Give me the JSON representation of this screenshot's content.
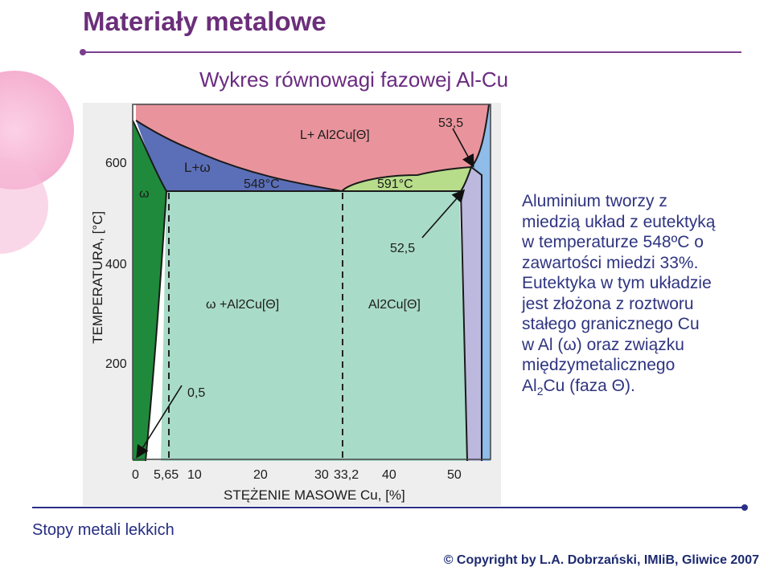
{
  "header": {
    "title": "Materiały metalowe",
    "subtitle": "Wykres równowagi fazowej Al-Cu"
  },
  "diagram": {
    "y_axis_label": "TEMPERATURA, [°C]",
    "x_axis_label": "STĘŻENIE MASOWE Cu, [%]",
    "y_ticks": [
      "600",
      "400",
      "200"
    ],
    "x_ticks": [
      "0",
      "5,65",
      "10",
      "20",
      "30",
      "33,2",
      "40",
      "50"
    ],
    "regions": {
      "liquid": "L+ Al2Cu[Θ]",
      "liquid_omega": "L+ω",
      "omega": "ω",
      "omega_al2cu": "ω +Al2Cu[Θ]",
      "al2cu": "Al2Cu[Θ]"
    },
    "annotations": {
      "eutectic_temp": "548°C",
      "theta_temp": "591°C",
      "comp_535": "53,5",
      "comp_525": "52,5",
      "comp_05": "0,5"
    },
    "colors": {
      "liquid": "#e9949c",
      "liquid_solid": "#5b6fb8",
      "omega": "#1f8a3b",
      "two_phase": "#a9dbc9",
      "theta_liquid": "#b7dd8a",
      "right_band": "#bcb8de",
      "right_edge": "#8fbce8"
    }
  },
  "description": {
    "line1": "Aluminium tworzy z",
    "line2": "miedzią układ z eutektyką",
    "line3": "w temperaturze 548ºC o",
    "line4": "zawartości miedzi 33%.",
    "line5": "Eutektyka w tym układzie",
    "line6": "jest złożona z roztworu",
    "line7": "stałego granicznego Cu",
    "line8": "w Al (ω) oraz związku",
    "line9": "międzymetalicznego",
    "line10_a": "Al",
    "line10_sub": "2",
    "line10_b": "Cu (faza Θ)."
  },
  "footer": {
    "left": "Stopy metali lekkich",
    "copyright": "© Copyright by L.A. Dobrzański, IMIiB, Gliwice 2007"
  }
}
